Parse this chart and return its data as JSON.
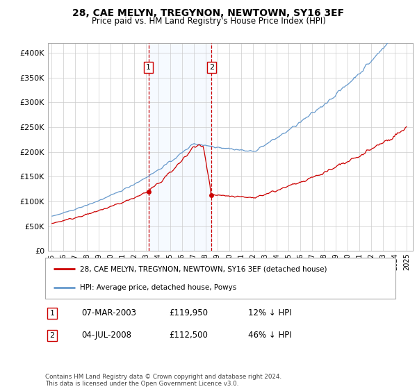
{
  "title": "28, CAE MELYN, TREGYNON, NEWTOWN, SY16 3EF",
  "subtitle": "Price paid vs. HM Land Registry's House Price Index (HPI)",
  "legend_line1": "28, CAE MELYN, TREGYNON, NEWTOWN, SY16 3EF (detached house)",
  "legend_line2": "HPI: Average price, detached house, Powys",
  "sale1_label": "1",
  "sale1_date": "07-MAR-2003",
  "sale1_price": "£119,950",
  "sale1_note": "12% ↓ HPI",
  "sale2_label": "2",
  "sale2_date": "04-JUL-2008",
  "sale2_price": "£112,500",
  "sale2_note": "46% ↓ HPI",
  "footer": "Contains HM Land Registry data © Crown copyright and database right 2024.\nThis data is licensed under the Open Government Licence v3.0.",
  "property_color": "#cc0000",
  "hpi_color": "#6699cc",
  "sale1_x": 2003.18,
  "sale1_y": 119950,
  "sale2_x": 2008.5,
  "sale2_y": 112500,
  "vline_color": "#cc0000",
  "shade_color": "#ddeeff",
  "ylim": [
    0,
    420000
  ],
  "yticks": [
    0,
    50000,
    100000,
    150000,
    200000,
    250000,
    300000,
    350000,
    400000
  ],
  "ytick_labels": [
    "£0",
    "£50K",
    "£100K",
    "£150K",
    "£200K",
    "£250K",
    "£300K",
    "£350K",
    "£400K"
  ],
  "xlim_start": 1994.7,
  "xlim_end": 2025.5
}
